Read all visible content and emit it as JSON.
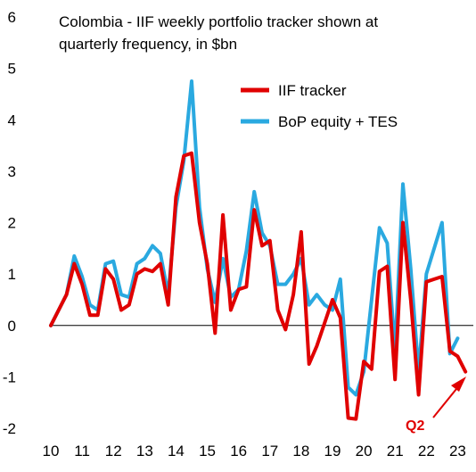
{
  "chart_data": {
    "type": "line",
    "title_lines": [
      "Colombia - IIF weekly portfolio tracker shown at",
      "quarterly frequency, in $bn"
    ],
    "xlabel": "",
    "ylabel": "",
    "ylim": [
      -2,
      6
    ],
    "yticks": [
      "-2",
      "-1",
      "0",
      "1",
      "2",
      "3",
      "4",
      "5",
      "6"
    ],
    "xlim": [
      2010,
      2023.5
    ],
    "xticks": [
      "10",
      "11",
      "12",
      "13",
      "14",
      "15",
      "16",
      "17",
      "18",
      "19",
      "20",
      "21",
      "22",
      "23"
    ],
    "grid": false,
    "legend_position": "upper-right",
    "series": [
      {
        "name": "IIF tracker",
        "color": "#e00000",
        "x": [
          2010.0,
          2010.25,
          2010.5,
          2010.75,
          2011.0,
          2011.25,
          2011.5,
          2011.75,
          2012.0,
          2012.25,
          2012.5,
          2012.75,
          2013.0,
          2013.25,
          2013.5,
          2013.75,
          2014.0,
          2014.25,
          2014.5,
          2014.75,
          2015.0,
          2015.25,
          2015.5,
          2015.75,
          2016.0,
          2016.25,
          2016.5,
          2016.75,
          2017.0,
          2017.25,
          2017.5,
          2017.75,
          2018.0,
          2018.25,
          2018.5,
          2018.75,
          2019.0,
          2019.25,
          2019.5,
          2019.75,
          2020.0,
          2020.25,
          2020.5,
          2020.75,
          2021.0,
          2021.25,
          2021.5,
          2021.75,
          2022.0,
          2022.25,
          2022.5,
          2022.75,
          2023.0,
          2023.25
        ],
        "values": [
          0.0,
          0.3,
          0.6,
          1.2,
          0.8,
          0.2,
          0.2,
          1.1,
          0.9,
          0.3,
          0.4,
          1.0,
          1.1,
          1.05,
          1.2,
          0.4,
          2.5,
          3.3,
          3.35,
          2.0,
          1.2,
          -0.15,
          2.15,
          0.3,
          0.7,
          0.75,
          2.25,
          1.55,
          1.65,
          0.3,
          -0.08,
          0.6,
          1.82,
          -0.75,
          -0.4,
          0.05,
          0.5,
          0.15,
          -1.8,
          -1.82,
          -0.7,
          -0.85,
          1.05,
          1.15,
          -1.05,
          2.0,
          0.5,
          -1.35,
          0.85,
          0.9,
          0.95,
          -0.5,
          -0.6,
          -0.9
        ]
      },
      {
        "name": "BoP equity + TES",
        "color": "#2aa9e0",
        "x": [
          2010.0,
          2010.25,
          2010.5,
          2010.75,
          2011.0,
          2011.25,
          2011.5,
          2011.75,
          2012.0,
          2012.25,
          2012.5,
          2012.75,
          2013.0,
          2013.25,
          2013.5,
          2013.75,
          2014.0,
          2014.25,
          2014.5,
          2014.75,
          2015.0,
          2015.25,
          2015.5,
          2015.75,
          2016.0,
          2016.25,
          2016.5,
          2016.75,
          2017.0,
          2017.25,
          2017.5,
          2017.75,
          2018.0,
          2018.25,
          2018.5,
          2018.75,
          2019.0,
          2019.25,
          2019.5,
          2019.75,
          2020.0,
          2020.25,
          2020.5,
          2020.75,
          2021.0,
          2021.25,
          2021.5,
          2021.75,
          2022.0,
          2022.25,
          2022.5,
          2022.75,
          2023.0
        ],
        "values": [
          0.0,
          0.3,
          0.6,
          1.35,
          0.95,
          0.4,
          0.3,
          1.2,
          1.25,
          0.6,
          0.55,
          1.2,
          1.3,
          1.55,
          1.4,
          0.6,
          2.3,
          3.2,
          4.75,
          2.3,
          1.1,
          0.45,
          1.3,
          0.55,
          0.7,
          1.45,
          2.6,
          1.8,
          1.55,
          0.8,
          0.8,
          1.0,
          1.3,
          0.4,
          0.6,
          0.4,
          0.3,
          0.9,
          -1.2,
          -1.35,
          -0.9,
          0.5,
          1.9,
          1.6,
          -0.5,
          2.75,
          1.1,
          -0.9,
          1.0,
          1.5,
          2.0,
          -0.55,
          -0.25
        ]
      }
    ],
    "annotation": {
      "label": "Q2",
      "color": "#e00000"
    }
  }
}
